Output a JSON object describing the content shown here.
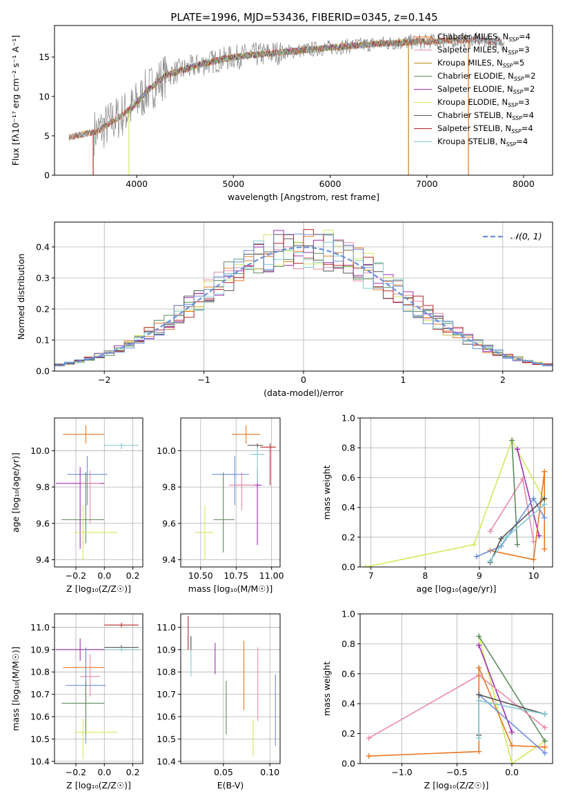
{
  "title": "PLATE=1996, MJD=53436, FIBERID=0345, z=0.145",
  "colors": {
    "chabrier_miles": "#e87722",
    "salpeter_miles": "#e88aa8",
    "kroupa_miles": "#b8860b",
    "chabrier_elodie": "#5b8a5b",
    "salpeter_elodie": "#a02cb0",
    "kroupa_elodie": "#d4e85a",
    "chabrier_stelib": "#555555",
    "salpeter_stelib": "#b22222",
    "kroupa_stelib": "#7fc8d0",
    "blue": "#6a8fd8",
    "data_spectrum": "#808080"
  },
  "chart_data": [
    {
      "id": "spectrum",
      "type": "line",
      "xlabel": "wavelength [Angstrom, rest frame]",
      "ylabel": "Flux [fλ10⁻¹⁷ erg cm⁻² s⁻¹ A⁻¹]",
      "xlim": [
        3150,
        8300
      ],
      "ylim": [
        0,
        19
      ],
      "xticks": [
        4000,
        5000,
        6000,
        7000,
        8000
      ],
      "yticks": [
        0,
        5,
        10,
        15
      ],
      "grid": false,
      "legend": "top-right",
      "continuum": {
        "x": [
          3300,
          3600,
          3950,
          4100,
          4300,
          4700,
          5000,
          5500,
          6000,
          6500,
          7000,
          7500,
          7800
        ],
        "y": [
          4.8,
          5.6,
          8.5,
          10.6,
          12.7,
          14.2,
          15.0,
          15.6,
          16.2,
          16.7,
          17.0,
          17.2,
          16.8
        ]
      },
      "data_range": [
        3560,
        7800
      ],
      "series": [
        {
          "name": "Chabrier MILES, N",
          "sub": "SSP",
          "suffix": "=4",
          "color_key": "chabrier_miles",
          "x_range": [
            3300,
            7430
          ],
          "drops": [
            7430
          ]
        },
        {
          "name": "Salpeter MILES, N",
          "sub": "SSP",
          "suffix": "=3",
          "color_key": "salpeter_miles",
          "x_range": [
            3300,
            7430
          ],
          "drops": []
        },
        {
          "name": "Kroupa MILES, N",
          "sub": "SSP",
          "suffix": "=5",
          "color_key": "kroupa_miles",
          "x_range": [
            3300,
            7430
          ],
          "drops": [
            6810
          ]
        },
        {
          "name": "Chabrier ELODIE, N",
          "sub": "SSP",
          "suffix": "=2",
          "color_key": "chabrier_elodie",
          "x_range": [
            3900,
            6800
          ],
          "drops": []
        },
        {
          "name": "Salpeter ELODIE, N",
          "sub": "SSP",
          "suffix": "=2",
          "color_key": "salpeter_elodie",
          "x_range": [
            3900,
            6800
          ],
          "drops": []
        },
        {
          "name": "Kroupa ELODIE, N",
          "sub": "SSP",
          "suffix": "=3",
          "color_key": "kroupa_elodie",
          "x_range": [
            3900,
            6800
          ],
          "drops": [
            3920
          ]
        },
        {
          "name": "Chabrier STELIB, N",
          "sub": "SSP",
          "suffix": "=4",
          "color_key": "chabrier_stelib",
          "x_range": [
            3300,
            7800
          ],
          "drops": []
        },
        {
          "name": "Salpeter STELIB, N",
          "sub": "SSP",
          "suffix": "=4",
          "color_key": "salpeter_stelib",
          "x_range": [
            3300,
            7800
          ],
          "drops": [
            3550
          ]
        },
        {
          "name": "Kroupa STELIB, N",
          "sub": "SSP",
          "suffix": "=4",
          "color_key": "kroupa_stelib",
          "x_range": [
            3300,
            7800
          ],
          "drops": []
        }
      ]
    },
    {
      "id": "residuals",
      "type": "histogram",
      "xlabel": "(data-model)/error",
      "ylabel": "Normed distribution",
      "xlim": [
        -2.5,
        2.5
      ],
      "ylim": [
        0,
        0.48
      ],
      "xticks": [
        -2,
        -1,
        0,
        1,
        2
      ],
      "yticks": [
        0.0,
        0.1,
        0.2,
        0.3,
        0.4
      ],
      "grid": true,
      "legend": "top-right",
      "legend_label": "𝒩(0, 1)",
      "gaussian": {
        "mean": 0,
        "sigma": 1,
        "color_key": "blue"
      },
      "bin_width": 0.1,
      "series_colors": [
        "chabrier_miles",
        "salpeter_miles",
        "chabrier_elodie",
        "salpeter_elodie",
        "kroupa_elodie",
        "chabrier_stelib",
        "salpeter_stelib",
        "kroupa_stelib",
        "blue"
      ]
    },
    {
      "id": "age_vs_z",
      "type": "errorbar",
      "xlabel": "Z [log₁₀(Z/Z☉)]",
      "ylabel": "age  [log₁₀(age/yr)]",
      "xlim": [
        -0.35,
        0.27
      ],
      "ylim": [
        9.36,
        10.18
      ],
      "xticks": [
        -0.2,
        0.0,
        0.2
      ],
      "yticks": [
        9.4,
        9.6,
        9.8,
        10.0
      ],
      "grid": true,
      "points": [
        {
          "color_key": "chabrier_miles",
          "x": -0.13,
          "xerr": [
            0.16,
            0.13
          ],
          "y": 10.09,
          "yerr": [
            0.05,
            0.05
          ]
        },
        {
          "color_key": "chabrier_stelib",
          "x": 0.12,
          "xerr": [
            0.12,
            0.12
          ],
          "y": 10.03,
          "yerr": [
            0.02,
            0.01
          ]
        },
        {
          "color_key": "kroupa_stelib",
          "x": 0.12,
          "xerr": [
            0.12,
            0.12
          ],
          "y": 10.03,
          "yerr": [
            0.02,
            0.01
          ]
        },
        {
          "color_key": "blue",
          "x": -0.12,
          "xerr": [
            0.14,
            0.14
          ],
          "y": 9.87,
          "yerr": [
            0.17,
            0.1
          ]
        },
        {
          "color_key": "salpeter_elodie",
          "x": -0.17,
          "xerr": [
            0.17,
            0.17
          ],
          "y": 9.82,
          "yerr": [
            0.36,
            0.09
          ]
        },
        {
          "color_key": "salpeter_miles",
          "x": -0.1,
          "xerr": [
            0.07,
            0.07
          ],
          "y": 9.82,
          "yerr": [
            0.22,
            0.07
          ]
        },
        {
          "color_key": "chabrier_elodie",
          "x": -0.13,
          "xerr": [
            0.17,
            0.13
          ],
          "y": 9.62,
          "yerr": [
            0.13,
            0.26
          ]
        },
        {
          "color_key": "kroupa_elodie",
          "x": -0.15,
          "xerr": [
            0.06,
            0.24
          ],
          "y": 9.55,
          "yerr": [
            0.15,
            0.15
          ]
        }
      ]
    },
    {
      "id": "age_vs_mass",
      "type": "errorbar",
      "xlabel": "mass [log₁₀(M/M☉)]",
      "ylabel": "",
      "xlim": [
        10.36,
        11.06
      ],
      "ylim": [
        9.36,
        10.18
      ],
      "xticks": [
        10.5,
        10.75,
        11.0
      ],
      "yticks": [
        9.4,
        9.6,
        9.8,
        10.0
      ],
      "grid": true,
      "points": [
        {
          "color_key": "chabrier_miles",
          "x": 10.82,
          "xerr": [
            0.1,
            0.1
          ],
          "y": 10.09,
          "yerr": [
            0.05,
            0.05
          ]
        },
        {
          "color_key": "chabrier_stelib",
          "x": 10.9,
          "xerr": [
            0.07,
            0.04
          ],
          "y": 10.03,
          "yerr": [
            0.02,
            0.01
          ]
        },
        {
          "color_key": "salpeter_stelib",
          "x": 10.99,
          "xerr": [
            0.07,
            0.04
          ],
          "y": 10.02,
          "yerr": [
            0.21,
            0.02
          ]
        },
        {
          "color_key": "blue",
          "x": 10.74,
          "xerr": [
            0.16,
            0.1
          ],
          "y": 9.87,
          "yerr": [
            0.17,
            0.1
          ]
        },
        {
          "color_key": "salpeter_elodie",
          "x": 10.9,
          "xerr": [
            0.15,
            0.03
          ],
          "y": 9.81,
          "yerr": [
            0.33,
            0.09
          ]
        },
        {
          "color_key": "salpeter_miles",
          "x": 10.79,
          "xerr": [
            0.09,
            0.09
          ],
          "y": 9.81,
          "yerr": [
            0.14,
            0.07
          ]
        },
        {
          "color_key": "kroupa_stelib",
          "x": 10.9,
          "xerr": [
            0.05,
            0.05
          ],
          "y": 9.98,
          "yerr": [
            0.16,
            0.04
          ]
        },
        {
          "color_key": "chabrier_elodie",
          "x": 10.66,
          "xerr": [
            0.07,
            0.08
          ],
          "y": 9.62,
          "yerr": [
            0.18,
            0.26
          ]
        },
        {
          "color_key": "kroupa_elodie",
          "x": 10.53,
          "xerr": [
            0.07,
            0.06
          ],
          "y": 9.55,
          "yerr": [
            0.15,
            0.15
          ]
        }
      ]
    },
    {
      "id": "weight_vs_age",
      "type": "line",
      "xlabel": "age  [log₁₀(age/yr)]",
      "ylabel": "mass weight",
      "xlim": [
        6.8,
        10.35
      ],
      "ylim": [
        0,
        1.0
      ],
      "xticks": [
        7,
        8,
        9,
        10
      ],
      "yticks": [
        0.0,
        0.2,
        0.4,
        0.6,
        0.8,
        1.0
      ],
      "grid": true,
      "series": [
        {
          "color_key": "kroupa_elodie",
          "x": [
            6.9,
            8.9,
            9.6,
            10.2
          ],
          "y": [
            0.0,
            0.15,
            0.85,
            0.45
          ]
        },
        {
          "color_key": "salpeter_elodie",
          "x": [
            9.7,
            10.1
          ],
          "y": [
            0.79,
            0.21
          ]
        },
        {
          "color_key": "salpeter_miles",
          "x": [
            9.2,
            9.8,
            10.0
          ],
          "y": [
            0.24,
            0.59,
            0.17
          ]
        },
        {
          "color_key": "chabrier_elodie",
          "x": [
            9.6,
            9.7
          ],
          "y": [
            0.85,
            0.15
          ]
        },
        {
          "color_key": "chabrier_miles",
          "x": [
            9.2,
            10.0,
            10.2,
            10.2
          ],
          "y": [
            0.11,
            0.05,
            0.64,
            0.12
          ]
        },
        {
          "color_key": "blue",
          "x": [
            8.95,
            9.4,
            10.0,
            10.2
          ],
          "y": [
            0.07,
            0.14,
            0.46,
            0.33
          ]
        },
        {
          "color_key": "chabrier_stelib",
          "x": [
            9.2,
            9.4,
            10.2
          ],
          "y": [
            0.03,
            0.19,
            0.46
          ]
        },
        {
          "color_key": "kroupa_stelib",
          "x": [
            9.2,
            9.5,
            10.2
          ],
          "y": [
            0.04,
            0.2,
            0.42
          ]
        }
      ]
    },
    {
      "id": "mass_vs_z",
      "type": "errorbar",
      "xlabel": "Z [log₁₀(Z/Z☉)]",
      "ylabel": "mass [log₁₀(M/M☉)]",
      "xlim": [
        -0.35,
        0.27
      ],
      "ylim": [
        10.39,
        11.06
      ],
      "xticks": [
        -0.2,
        0.0,
        0.2
      ],
      "yticks": [
        10.4,
        10.5,
        10.6,
        10.7,
        10.8,
        10.9,
        11.0
      ],
      "grid": true,
      "points": [
        {
          "color_key": "salpeter_stelib",
          "x": 0.12,
          "xerr": [
            0.12,
            0.12
          ],
          "y": 11.01,
          "yerr": [
            0.01,
            0.01
          ]
        },
        {
          "color_key": "chabrier_stelib",
          "x": 0.12,
          "xerr": [
            0.12,
            0.12
          ],
          "y": 10.91,
          "yerr": [
            0.01,
            0.01
          ]
        },
        {
          "color_key": "kroupa_stelib",
          "x": 0.12,
          "xerr": [
            0.12,
            0.12
          ],
          "y": 10.9,
          "yerr": [
            0.01,
            0.01
          ]
        },
        {
          "color_key": "salpeter_elodie",
          "x": -0.17,
          "xerr": [
            0.17,
            0.17
          ],
          "y": 10.9,
          "yerr": [
            0.05,
            0.05
          ]
        },
        {
          "color_key": "chabrier_miles",
          "x": -0.13,
          "xerr": [
            0.16,
            0.13
          ],
          "y": 10.82,
          "yerr": [
            0.19,
            0.07
          ]
        },
        {
          "color_key": "salpeter_miles",
          "x": -0.1,
          "xerr": [
            0.07,
            0.07
          ],
          "y": 10.78,
          "yerr": [
            0.09,
            0.1
          ]
        },
        {
          "color_key": "blue",
          "x": -0.13,
          "xerr": [
            0.14,
            0.14
          ],
          "y": 10.74,
          "yerr": [
            0.26,
            0.17
          ]
        },
        {
          "color_key": "chabrier_elodie",
          "x": -0.13,
          "xerr": [
            0.17,
            0.13
          ],
          "y": 10.66,
          "yerr": [
            0.14,
            0.1
          ]
        },
        {
          "color_key": "kroupa_elodie",
          "x": -0.15,
          "xerr": [
            0.06,
            0.24
          ],
          "y": 10.53,
          "yerr": [
            0.12,
            0.06
          ]
        }
      ]
    },
    {
      "id": "mass_vs_ebv",
      "type": "errorbar",
      "xlabel": "E(B-V)",
      "ylabel": "",
      "xlim": [
        0.004,
        0.111
      ],
      "ylim": [
        10.39,
        11.06
      ],
      "xticks": [
        0.05,
        0.1
      ],
      "yticks": [
        10.4,
        10.5,
        10.6,
        10.7,
        10.8,
        10.9,
        11.0
      ],
      "grid": true,
      "points": [
        {
          "color_key": "salpeter_stelib",
          "x": 0.012,
          "xerr": [
            0,
            0
          ],
          "y": 10.98,
          "yerr": [
            0.08,
            0.07
          ]
        },
        {
          "color_key": "kroupa_stelib",
          "x": 0.015,
          "xerr": [
            0,
            0
          ],
          "y": 10.87,
          "yerr": [
            0.09,
            0.09
          ]
        },
        {
          "color_key": "chabrier_stelib",
          "x": 0.015,
          "xerr": [
            0,
            0
          ],
          "y": 10.91,
          "yerr": [
            0.01,
            0.05
          ]
        },
        {
          "color_key": "salpeter_elodie",
          "x": 0.041,
          "xerr": [
            0,
            0
          ],
          "y": 10.86,
          "yerr": [
            0.07,
            0.07
          ]
        },
        {
          "color_key": "chabrier_elodie",
          "x": 0.053,
          "xerr": [
            0,
            0
          ],
          "y": 10.64,
          "yerr": [
            0.12,
            0.12
          ]
        },
        {
          "color_key": "chabrier_miles",
          "x": 0.072,
          "xerr": [
            0,
            0
          ],
          "y": 10.79,
          "yerr": [
            0.16,
            0.15
          ]
        },
        {
          "color_key": "kroupa_elodie",
          "x": 0.082,
          "xerr": [
            0,
            0
          ],
          "y": 10.5,
          "yerr": [
            0.08,
            0.09
          ]
        },
        {
          "color_key": "salpeter_miles",
          "x": 0.087,
          "xerr": [
            0,
            0
          ],
          "y": 10.78,
          "yerr": [
            0.2,
            0.13
          ]
        },
        {
          "color_key": "blue",
          "x": 0.106,
          "xerr": [
            0,
            0
          ],
          "y": 10.63,
          "yerr": [
            0.16,
            0.16
          ]
        }
      ]
    },
    {
      "id": "weight_vs_z",
      "type": "line",
      "xlabel": "Z [log₁₀(Z/Z☉)]",
      "ylabel": "mass weight",
      "xlim": [
        -1.38,
        0.37
      ],
      "ylim": [
        0,
        1.0
      ],
      "xticks": [
        -1.0,
        -0.5,
        0.0
      ],
      "yticks": [
        0.0,
        0.2,
        0.4,
        0.6,
        0.8,
        1.0
      ],
      "grid": true,
      "series": [
        {
          "color_key": "kroupa_elodie",
          "x": [
            -0.3,
            0.0,
            0.3
          ],
          "y": [
            0.85,
            0.0,
            0.15
          ]
        },
        {
          "color_key": "chabrier_elodie",
          "x": [
            -0.3,
            0.3
          ],
          "y": [
            0.85,
            0.15
          ]
        },
        {
          "color_key": "salpeter_elodie",
          "x": [
            -0.3,
            0.0
          ],
          "y": [
            0.79,
            0.21
          ]
        },
        {
          "color_key": "salpeter_miles",
          "x": [
            -1.3,
            -0.3,
            0.3
          ],
          "y": [
            0.17,
            0.59,
            0.24
          ]
        },
        {
          "color_key": "chabrier_miles",
          "x": [
            -1.3,
            -0.3,
            -0.3,
            0.0,
            0.3
          ],
          "y": [
            0.05,
            0.08,
            0.64,
            0.12,
            0.11
          ]
        },
        {
          "color_key": "blue",
          "x": [
            -0.3,
            0.3
          ],
          "y": [
            0.46,
            0.07
          ]
        },
        {
          "color_key": "chabrier_stelib",
          "x": [
            -0.3,
            -0.3,
            0.3
          ],
          "y": [
            0.19,
            0.46,
            0.33
          ]
        },
        {
          "color_key": "kroupa_stelib",
          "x": [
            -0.3,
            -0.3,
            0.3
          ],
          "y": [
            0.17,
            0.42,
            0.33
          ]
        }
      ]
    }
  ]
}
